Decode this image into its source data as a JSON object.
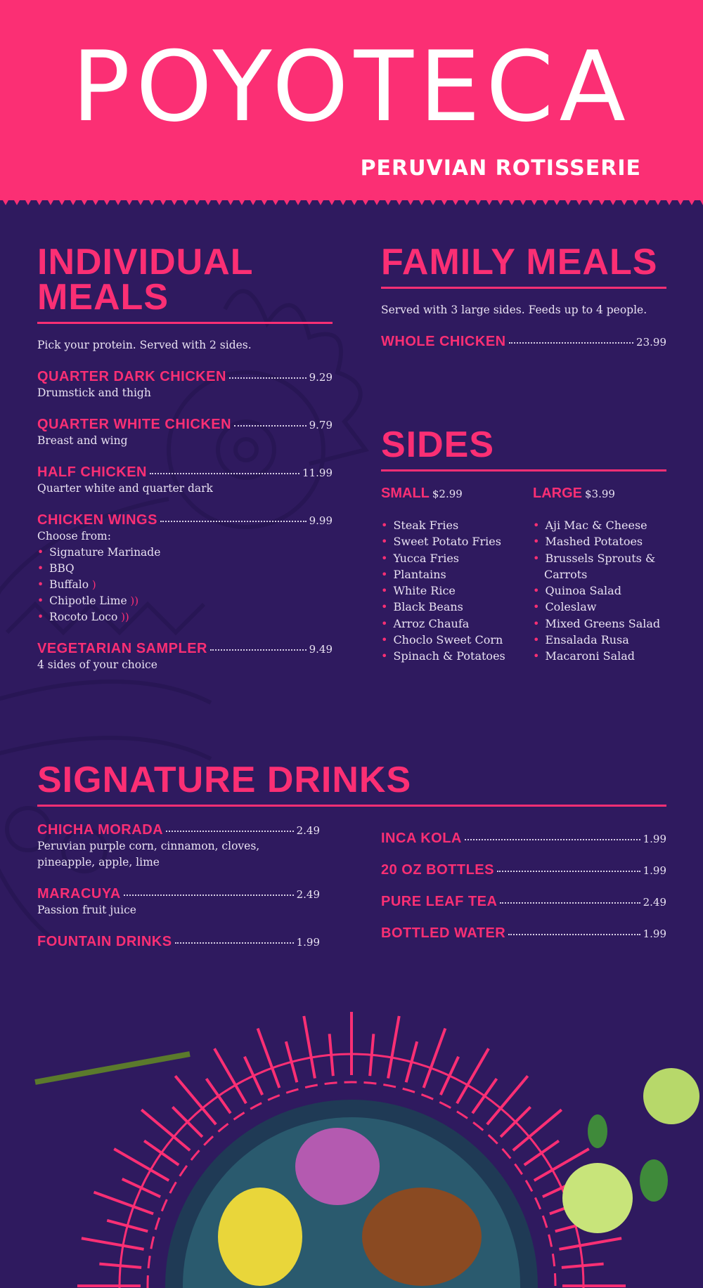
{
  "brand": {
    "name": "POYOTECA",
    "tagline": "PERUVIAN ROTISSERIE",
    "colors": {
      "pink": "#fb2f74",
      "purple": "#2f1a5f"
    }
  },
  "individual": {
    "title": "INDIVIDUAL MEALS",
    "intro": "Pick your protein.  Served with 2 sides.",
    "items": [
      {
        "name": "QUARTER DARK CHICKEN",
        "price": "9.29",
        "desc": "Drumstick and thigh"
      },
      {
        "name": "QUARTER WHITE CHICKEN",
        "price": "9.79",
        "desc": "Breast and wing"
      },
      {
        "name": "HALF CHICKEN",
        "price": "11.99",
        "desc": "Quarter white and quarter dark"
      },
      {
        "name": "CHICKEN WINGS",
        "price": "9.99",
        "desc": "Choose from:",
        "options": [
          {
            "label": "Signature Marinade",
            "heat": 0
          },
          {
            "label": "BBQ",
            "heat": 0
          },
          {
            "label": "Buffalo",
            "heat": 1
          },
          {
            "label": "Chipotle Lime",
            "heat": 2
          },
          {
            "label": "Rocoto Loco",
            "heat": 2
          }
        ]
      },
      {
        "name": "VEGETARIAN SAMPLER",
        "price": "9.49",
        "desc": "4 sides of your choice"
      }
    ]
  },
  "family": {
    "title": "FAMILY MEALS",
    "intro": "Served with 3 large sides.  Feeds up to 4 people.",
    "items": [
      {
        "name": "WHOLE CHICKEN",
        "price": "23.99"
      }
    ]
  },
  "sides": {
    "title": "SIDES",
    "small": {
      "label": "SMALL",
      "price": "$2.99",
      "items": [
        "Steak Fries",
        "Sweet Potato Fries",
        "Yucca Fries",
        "Plantains",
        "White Rice",
        "Black Beans",
        "Arroz Chaufa",
        "Choclo Sweet Corn",
        "Spinach & Potatoes"
      ]
    },
    "large": {
      "label": "LARGE",
      "price": "$3.99",
      "items": [
        "Aji Mac & Cheese",
        "Mashed Potatoes",
        "Brussels Sprouts & Carrots",
        "Quinoa Salad",
        "Coleslaw",
        "Mixed Greens Salad",
        "Ensalada Rusa",
        "Macaroni Salad"
      ]
    }
  },
  "drinks": {
    "title": "SIGNATURE DRINKS",
    "left": [
      {
        "name": "CHICHA MORADA",
        "price": "2.49",
        "desc": "Peruvian purple corn, cinnamon, cloves, pineapple, apple, lime"
      },
      {
        "name": "MARACUYA",
        "price": "2.49",
        "desc": "Passion fruit juice"
      },
      {
        "name": "FOUNTAIN DRINKS",
        "price": "1.99"
      }
    ],
    "right": [
      {
        "name": "INCA KOLA",
        "price": "1.99"
      },
      {
        "name": "20 OZ BOTTLES",
        "price": "1.99"
      },
      {
        "name": "PURE LEAF TEA",
        "price": "2.49"
      },
      {
        "name": "BOTTLED WATER",
        "price": "1.99"
      }
    ]
  },
  "icons": {
    "heat": "chili-pepper-icon"
  }
}
